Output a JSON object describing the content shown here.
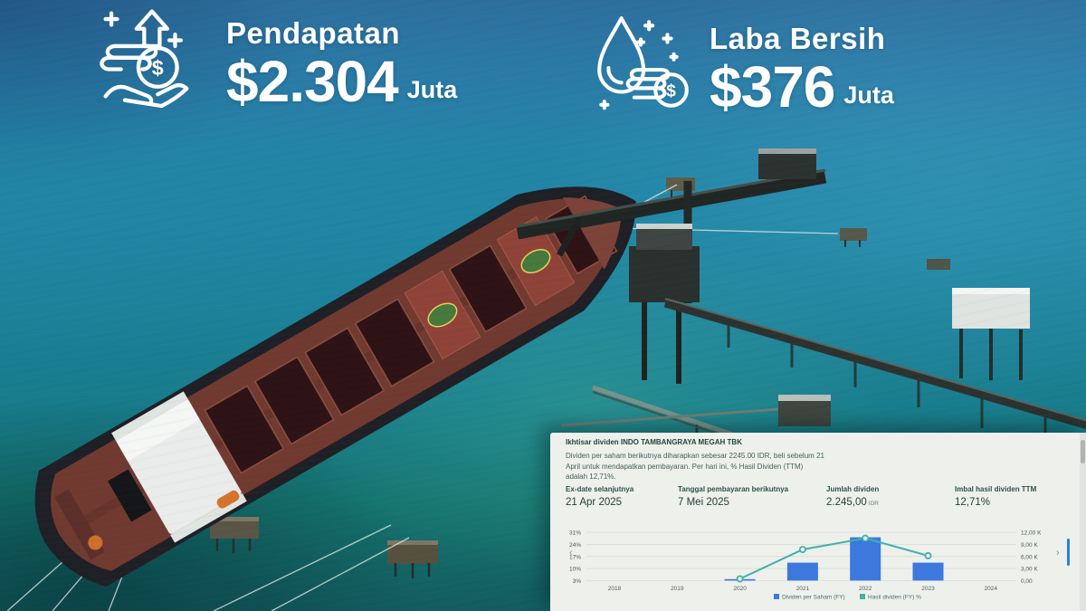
{
  "overlay": {
    "revenue": {
      "label": "Pendapatan",
      "value": "$2.304",
      "unit": "Juta",
      "icon": "coins-in-hand-growth-icon"
    },
    "net_income": {
      "label": "Laba Bersih",
      "value": "$376",
      "unit": "Juta",
      "icon": "water-drop-coins-icon"
    }
  },
  "panel": {
    "title": "Ikhtisar dividen INDO TAMBANGRAYA MEGAH TBK",
    "description": "Dividen per saham berikutnya diharapkan sebesar 2245.00 IDR, beli sebelum 21 April untuk mendapatkan pembayaran. Per hari ini, % Hasil Dividen (TTM) adalah 12,71%.",
    "stats": [
      {
        "label": "Ex-date selanjutnya",
        "value": "21 Apr 2025"
      },
      {
        "label": "Tanggal pembayaran berikutnya",
        "value": "7 Mei 2025"
      },
      {
        "label": "Jumlah dividen",
        "value": "2.245,00",
        "suffix": "IDR"
      },
      {
        "label": "Imbal hasil dividen TTM",
        "value": "12,71%"
      }
    ],
    "nav": {
      "prev": "‹",
      "next": "›"
    }
  },
  "chart_data": {
    "type": "bar",
    "categories": [
      "2018",
      "2019",
      "2020",
      "2021",
      "2022",
      "2023",
      "2024"
    ],
    "series": [
      {
        "name": "Dividen per Saham (FY)",
        "type": "bar",
        "axis": "right",
        "color": "#3d78dd",
        "values": [
          null,
          null,
          200,
          4450,
          10750,
          4450,
          null
        ]
      },
      {
        "name": "Hasil dividen (FY) %",
        "type": "line",
        "axis": "left",
        "color": "#41b1aa",
        "values": [
          null,
          null,
          4,
          21,
          27.5,
          17.4,
          null
        ]
      }
    ],
    "left_axis": {
      "ticks": [
        "31%",
        "24%",
        "17%",
        "10%",
        "3%"
      ],
      "min": 3,
      "max": 31
    },
    "right_axis": {
      "ticks": [
        "12,00 K",
        "9,00 K",
        "6,00 K",
        "3,00 K",
        "0,00"
      ],
      "min": 0,
      "max": 12000
    },
    "legend_position": "bottom-center",
    "grid": true
  },
  "colors": {
    "bar_blue": "#3d78dd",
    "line_teal": "#41b1aa",
    "panel_bg": "#eef0ec",
    "overlay_text": "#ffffff",
    "ocean_top": "#2e6f9e",
    "ocean_mid": "#1c8199",
    "ocean_deep": "#135c60"
  }
}
